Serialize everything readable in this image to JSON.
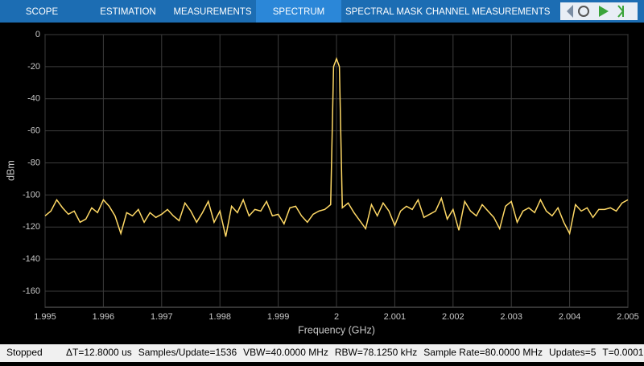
{
  "tabs": [
    "SCOPE",
    "ESTIMATION",
    "MEASUREMENTS",
    "SPECTRUM",
    "SPECTRAL MASK",
    "CHANNEL MEASUREMENTS"
  ],
  "status": {
    "state": "Stopped",
    "items": [
      "ΔT=12.8000 us",
      "Samples/Update=1536",
      "VBW=40.0000 MHz",
      "RBW=78.1250 kHz",
      "Sample Rate=80.0000 MHz",
      "Updates=5",
      "T=0.0001"
    ]
  },
  "chart_data": {
    "type": "line",
    "x_label": "Frequency (GHz)",
    "y_label": "dBm",
    "color": "#ffd966",
    "grid": true,
    "xlim": [
      1.995,
      2.005
    ],
    "ylim": [
      -170,
      0
    ],
    "xticks": [
      1.995,
      1.996,
      1.997,
      1.998,
      1.999,
      2,
      2.001,
      2.002,
      2.003,
      2.004,
      2.005
    ],
    "yticks": [
      0,
      -20,
      -40,
      -60,
      -80,
      -100,
      -120,
      -140,
      -160
    ],
    "x": [
      1.995,
      1.9951,
      1.9952,
      1.9953,
      1.9954,
      1.9955,
      1.9956,
      1.9957,
      1.9958,
      1.9959,
      1.996,
      1.9961,
      1.9962,
      1.9963,
      1.9964,
      1.9965,
      1.9966,
      1.9967,
      1.9968,
      1.9969,
      1.997,
      1.9971,
      1.9972,
      1.9973,
      1.9974,
      1.9975,
      1.9976,
      1.9977,
      1.9978,
      1.9979,
      1.998,
      1.9981,
      1.9982,
      1.9983,
      1.9984,
      1.9985,
      1.9986,
      1.9987,
      1.9988,
      1.9989,
      1.999,
      1.9991,
      1.9992,
      1.9993,
      1.9994,
      1.9995,
      1.9996,
      1.9997,
      1.9998,
      1.9999,
      1.99995,
      2,
      2.00005,
      2.0001,
      2.0002,
      2.0003,
      2.0004,
      2.0005,
      2.0006,
      2.0007,
      2.0008,
      2.0009,
      2.001,
      2.0011,
      2.0012,
      2.0013,
      2.0014,
      2.0015,
      2.0016,
      2.0017,
      2.0018,
      2.0019,
      2.002,
      2.0021,
      2.0022,
      2.0023,
      2.0024,
      2.0025,
      2.0026,
      2.0027,
      2.0028,
      2.0029,
      2.003,
      2.0031,
      2.0032,
      2.0033,
      2.0034,
      2.0035,
      2.0036,
      2.0037,
      2.0038,
      2.0039,
      2.004,
      2.0041,
      2.0042,
      2.0043,
      2.0044,
      2.0045,
      2.0046,
      2.0047,
      2.0048,
      2.0049,
      2.005
    ],
    "values": [
      -113,
      -110,
      -103,
      -108,
      -112,
      -110,
      -117,
      -115,
      -108,
      -111,
      -103,
      -107,
      -113,
      -124,
      -111,
      -113,
      -109,
      -117,
      -111,
      -114,
      -112,
      -109,
      -113,
      -116,
      -105,
      -110,
      -117,
      -111,
      -104,
      -117,
      -110,
      -126,
      -107,
      -111,
      -103,
      -113,
      -109,
      -110,
      -104,
      -113,
      -112,
      -118,
      -108,
      -107,
      -113,
      -117,
      -112,
      -110,
      -109,
      -106,
      -20,
      -15,
      -20,
      -108,
      -105,
      -111,
      -116,
      -121,
      -106,
      -113,
      -105,
      -110,
      -119,
      -110,
      -107,
      -109,
      -103,
      -114,
      -112,
      -110,
      -102,
      -115,
      -109,
      -122,
      -104,
      -110,
      -113,
      -106,
      -110,
      -114,
      -121,
      -107,
      -104,
      -117,
      -110,
      -108,
      -111,
      -103,
      -110,
      -113,
      -108,
      -117,
      -124,
      -106,
      -110,
      -108,
      -114,
      -109,
      -109,
      -108,
      -110,
      -105,
      -103
    ]
  }
}
